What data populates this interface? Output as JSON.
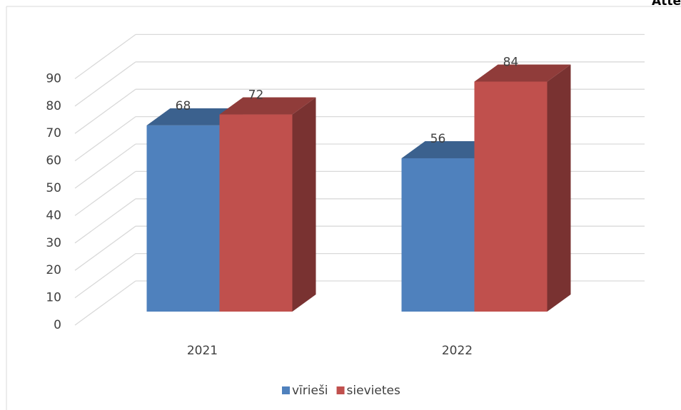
{
  "corner_text": "Atte",
  "chart_data": {
    "type": "bar3d",
    "categories": [
      "2021",
      "2022"
    ],
    "series": [
      {
        "name": "vīrieši",
        "color": "#4f81bd",
        "values": [
          68,
          56
        ]
      },
      {
        "name": "sievietes",
        "color": "#c0504d",
        "values": [
          72,
          84
        ]
      }
    ],
    "ylim": [
      0,
      90
    ],
    "yticks": [
      0,
      10,
      20,
      30,
      40,
      50,
      60,
      70,
      80,
      90
    ],
    "grid": true,
    "legend": "bottom"
  }
}
